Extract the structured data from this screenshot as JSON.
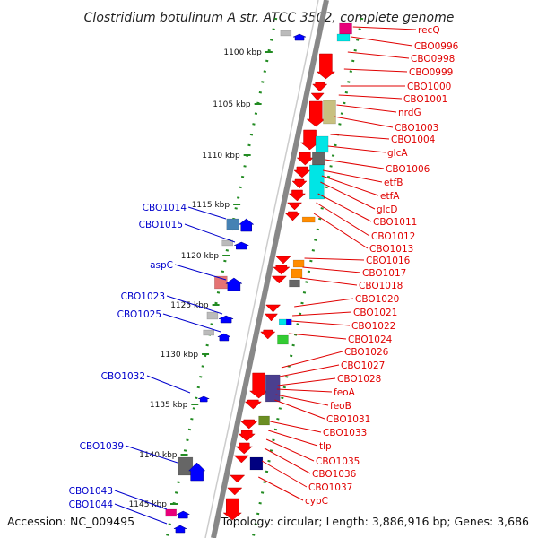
{
  "title": "Clostridium botulinum A str. ATCC 3502, complete genome",
  "footer": {
    "accession": "Accession: NC_009495",
    "topology": "Topology: circular; Length: 3,886,916 bp; Genes: 3,686"
  },
  "ticks": [
    {
      "label": "1100 kbp"
    },
    {
      "label": "1105 kbp"
    },
    {
      "label": "1110 kbp"
    },
    {
      "label": "1115 kbp"
    },
    {
      "label": "1120 kbp"
    },
    {
      "label": "1125 kbp"
    },
    {
      "label": "1130 kbp"
    },
    {
      "label": "1135 kbp"
    },
    {
      "label": "1140 kbp"
    },
    {
      "label": "1145 kbp"
    }
  ],
  "right_labels": [
    "recQ",
    "CBO0996",
    "CBO0998",
    "CBO0999",
    "CBO1000",
    "CBO1001",
    "nrdG",
    "CBO1003",
    "CBO1004",
    "glcA",
    "CBO1006",
    "etfB",
    "etfA",
    "glcD",
    "CBO1011",
    "CBO1012",
    "CBO1013",
    "CBO1016",
    "CBO1017",
    "CBO1018",
    "CBO1020",
    "CBO1021",
    "CBO1022",
    "CBO1024",
    "CBO1026",
    "CBO1027",
    "CBO1028",
    "feoA",
    "feoB",
    "CBO1031",
    "CBO1033",
    "tlp",
    "CBO1035",
    "CBO1036",
    "CBO1037",
    "cypC"
  ],
  "left_labels": [
    "CBO1014",
    "CBO1015",
    "aspC",
    "CBO1023",
    "CBO1025",
    "CBO1032",
    "CBO1039",
    "CBO1043",
    "CBO1044"
  ],
  "colors": {
    "forward": "#ff0000",
    "reverse": "#0000ff",
    "backbone": "#888888",
    "track": "#228b22"
  }
}
